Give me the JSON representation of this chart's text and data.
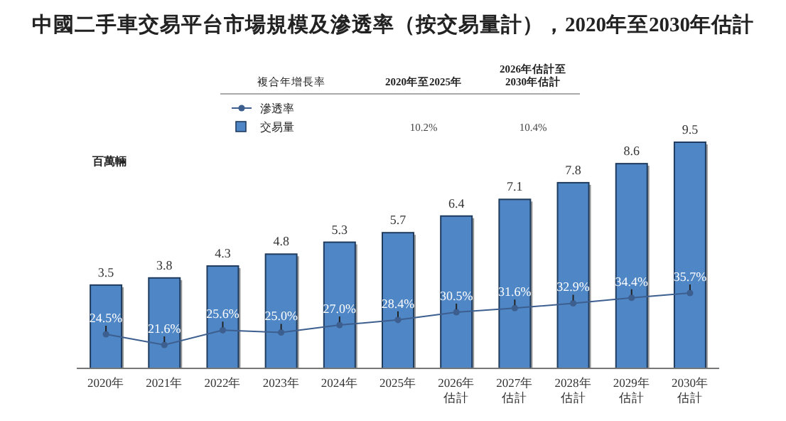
{
  "chart_data": {
    "type": "bar",
    "title": "中國二手車交易平台市場規模及滲透率（按交易量計），2020年至2030年估計",
    "ylabel": "百萬輛",
    "categories": [
      "2020年",
      "2021年",
      "2022年",
      "2023年",
      "2024年",
      "2025年",
      "2026年估計",
      "2027年估計",
      "2028年估計",
      "2029年估計",
      "2030年估計"
    ],
    "series": [
      {
        "name": "交易量",
        "color": "#4f86c6",
        "values": [
          3.5,
          3.8,
          4.3,
          4.8,
          5.3,
          5.7,
          6.4,
          7.1,
          7.8,
          8.6,
          9.5
        ]
      },
      {
        "name": "滲透率",
        "type": "line",
        "axis": "y2",
        "color": "#3d5f8f",
        "marker": "circle",
        "value_labels": [
          "24.5%",
          "21.6%",
          "25.6%",
          "25.0%",
          "27.0%",
          "28.4%",
          "30.5%",
          "31.6%",
          "32.9%",
          "34.4%",
          "35.7%"
        ],
        "values": [
          24.5,
          21.6,
          25.6,
          25.0,
          27.0,
          28.4,
          30.5,
          31.6,
          32.9,
          34.4,
          35.7
        ]
      }
    ],
    "data_labels": true,
    "legend": "top left",
    "grid": false,
    "annotations": [
      "複合年增長率",
      "2020年至2025年",
      "2026年估計至\n2030年估計",
      "10.2%",
      "10.4%"
    ]
  }
}
